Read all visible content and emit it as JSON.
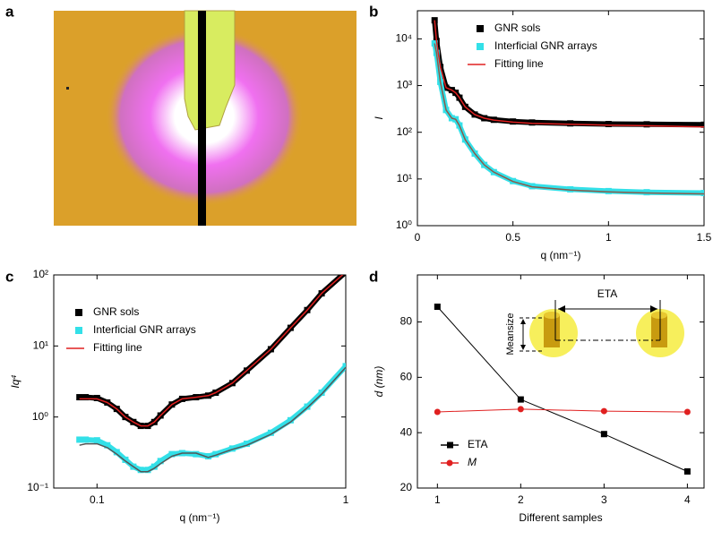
{
  "chart_data": [
    {
      "panel": "a",
      "type": "image"
    },
    {
      "panel": "b",
      "type": "line",
      "ylabel": "I",
      "xlabel": "q (nm⁻¹)",
      "xlim": [
        0,
        1.5
      ],
      "xticks": [
        0,
        0.5,
        1,
        1.5
      ],
      "ylim": [
        1,
        40000
      ],
      "ylog": true,
      "yticks": [
        {
          "value": 1,
          "label": "10⁰"
        },
        {
          "value": 10,
          "label": "10¹"
        },
        {
          "value": 100,
          "label": "10²"
        },
        {
          "value": 1000,
          "label": "10³"
        },
        {
          "value": 10000,
          "label": "10⁴"
        }
      ],
      "legend": "upper center",
      "x": [
        0.09,
        0.1,
        0.12,
        0.15,
        0.18,
        0.2,
        0.22,
        0.25,
        0.3,
        0.35,
        0.4,
        0.5,
        0.6,
        0.8,
        1.0,
        1.2,
        1.5
      ],
      "series": [
        {
          "name": "GNR sols",
          "color": "#000000",
          "marker": "square",
          "values": [
            25000,
            9000,
            2500,
            900,
            800,
            700,
            550,
            350,
            240,
            200,
            185,
            170,
            162,
            155,
            150,
            148,
            145
          ]
        },
        {
          "name": "Interficial GNR arrays",
          "color": "#33e0e8",
          "marker": "square",
          "values": [
            8000,
            5000,
            1200,
            300,
            200,
            190,
            140,
            70,
            35,
            20,
            14,
            9,
            7,
            6,
            5.5,
            5.2,
            5
          ]
        },
        {
          "name": "Fitting line",
          "color": "#e02020",
          "values": [
            25000,
            9000,
            2500,
            900,
            800,
            700,
            550,
            350,
            240,
            200,
            182,
            165,
            155,
            148,
            142,
            138,
            130
          ]
        },
        {
          "color": "#8a5a4a",
          "values": [
            8000,
            5000,
            1200,
            300,
            200,
            190,
            140,
            70,
            35,
            20,
            14,
            8.8,
            6.8,
            5.8,
            5.3,
            5,
            4.8
          ]
        }
      ]
    },
    {
      "panel": "c",
      "type": "line",
      "ylabel": "Iq⁴",
      "xlabel": "q (nm⁻¹)",
      "xlim": [
        0.067,
        1
      ],
      "xlog": true,
      "xticks": [
        0.1,
        1
      ],
      "ylim": [
        0.1,
        100
      ],
      "ylog": true,
      "yticks": [
        {
          "value": 0.1,
          "label": "10⁻¹"
        },
        {
          "value": 1,
          "label": "10⁰"
        },
        {
          "value": 10,
          "label": "10¹"
        },
        {
          "value": 100,
          "label": "10²"
        }
      ],
      "legend": "upper left",
      "x": [
        0.085,
        0.09,
        0.1,
        0.11,
        0.12,
        0.13,
        0.14,
        0.15,
        0.16,
        0.17,
        0.18,
        0.2,
        0.22,
        0.25,
        0.28,
        0.3,
        0.35,
        0.4,
        0.5,
        0.6,
        0.7,
        0.8,
        1.0
      ],
      "series": [
        {
          "name": "GNR sols",
          "color": "#000000",
          "marker": "square",
          "values": [
            1.9,
            1.9,
            1.85,
            1.6,
            1.3,
            1.0,
            0.85,
            0.75,
            0.75,
            0.85,
            1.05,
            1.5,
            1.8,
            1.9,
            2.0,
            2.2,
            3.0,
            4.5,
            9,
            18,
            32,
            55,
            110
          ]
        },
        {
          "name": "Interficial GNR arrays",
          "color": "#33e0e8",
          "marker": "square",
          "values": [
            0.48,
            0.48,
            0.47,
            0.4,
            0.32,
            0.25,
            0.2,
            0.18,
            0.18,
            0.2,
            0.24,
            0.3,
            0.31,
            0.3,
            0.28,
            0.3,
            0.36,
            0.42,
            0.6,
            0.9,
            1.4,
            2.2,
            5.2
          ]
        },
        {
          "name": "Fitting line",
          "color": "#e02020",
          "values": [
            1.8,
            1.8,
            1.8,
            1.6,
            1.3,
            1.0,
            0.85,
            0.75,
            0.75,
            0.85,
            1.05,
            1.5,
            1.8,
            1.9,
            2.0,
            2.2,
            3.0,
            4.5,
            9,
            18,
            32,
            55,
            110
          ]
        },
        {
          "color": "#555555",
          "values": [
            0.4,
            0.42,
            0.42,
            0.37,
            0.3,
            0.24,
            0.2,
            0.17,
            0.17,
            0.19,
            0.22,
            0.28,
            0.31,
            0.31,
            0.27,
            0.29,
            0.35,
            0.4,
            0.57,
            0.85,
            1.35,
            2.1,
            5
          ]
        }
      ]
    },
    {
      "panel": "d",
      "type": "line",
      "ylabel": "d (nm)",
      "xlabel": "Different samples",
      "xlim": [
        0.76,
        4.2
      ],
      "xticks": [
        1,
        2,
        3,
        4
      ],
      "ylim": [
        20,
        97
      ],
      "yticks": [
        20,
        40,
        60,
        80
      ],
      "legend": "lower left",
      "annotations": [
        "ETA",
        "Meansize"
      ],
      "x": [
        1,
        2,
        3,
        4
      ],
      "series": [
        {
          "name": "ETA",
          "color": "#000000",
          "marker": "square",
          "values": [
            85.5,
            52,
            39.5,
            26
          ]
        },
        {
          "name": "M",
          "color": "#e02020",
          "marker": "circle",
          "values": [
            47.5,
            48.5,
            47.8,
            47.5
          ]
        }
      ]
    }
  ]
}
